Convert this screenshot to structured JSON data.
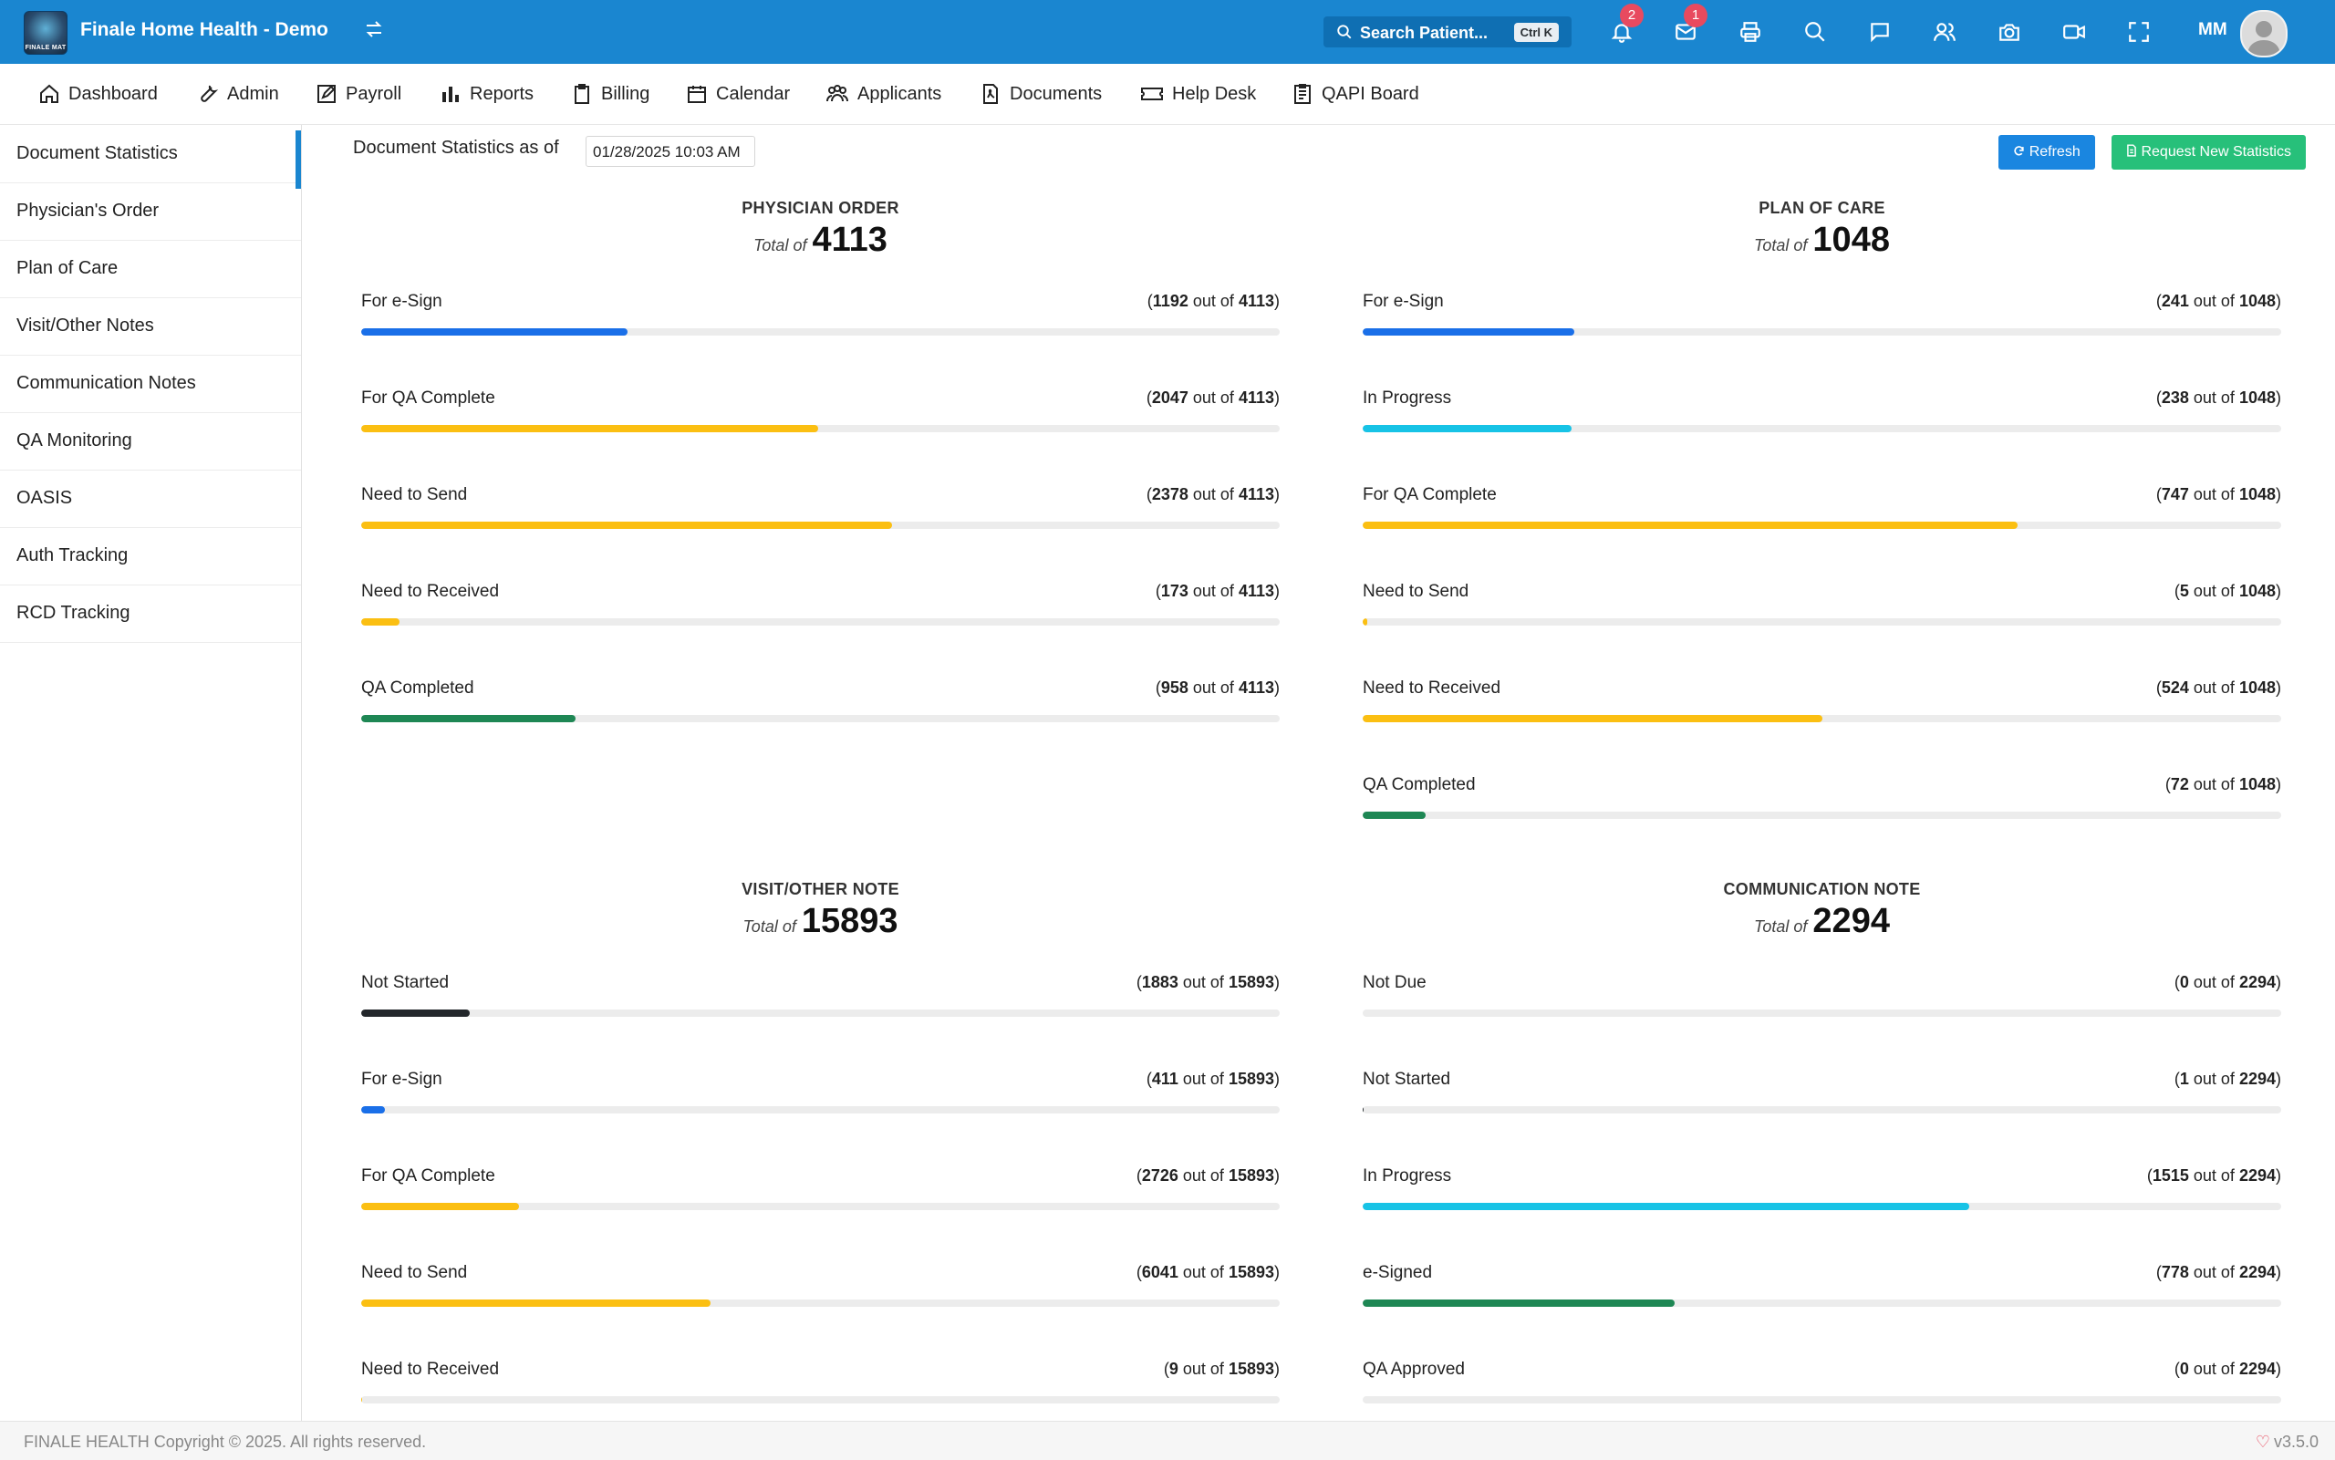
{
  "header": {
    "app_title": "Finale Home Health - Demo",
    "logo_text": "FINALE MAT",
    "search_label": "Search Patient...",
    "search_shortcut": "Ctrl K",
    "notifications_count": "2",
    "messages_count": "1",
    "user_initials": "MM",
    "icons": [
      "swap-icon",
      "bell-icon",
      "mail-icon",
      "print-icon",
      "search-icon",
      "chat-icon",
      "users-icon",
      "camera-icon",
      "video-icon",
      "fullscreen-icon"
    ]
  },
  "nav": {
    "items": [
      {
        "label": "Dashboard",
        "icon": "home-icon"
      },
      {
        "label": "Admin",
        "icon": "wrench-icon"
      },
      {
        "label": "Payroll",
        "icon": "edit-icon"
      },
      {
        "label": "Reports",
        "icon": "bar-chart-icon"
      },
      {
        "label": "Billing",
        "icon": "clipboard-icon"
      },
      {
        "label": "Calendar",
        "icon": "calendar-icon"
      },
      {
        "label": "Applicants",
        "icon": "people-icon"
      },
      {
        "label": "Documents",
        "icon": "pdf-icon"
      },
      {
        "label": "Help Desk",
        "icon": "ticket-icon"
      },
      {
        "label": "QAPI Board",
        "icon": "checklist-icon"
      }
    ]
  },
  "sidebar": {
    "items": [
      {
        "label": "Document Statistics",
        "active": true
      },
      {
        "label": "Physician's Order"
      },
      {
        "label": "Plan of Care"
      },
      {
        "label": "Visit/Other Notes"
      },
      {
        "label": "Communication Notes"
      },
      {
        "label": "QA Monitoring"
      },
      {
        "label": "OASIS"
      },
      {
        "label": "Auth Tracking"
      },
      {
        "label": "RCD Tracking"
      }
    ]
  },
  "toolbar": {
    "as_of_label": "Document Statistics as of",
    "as_of_value": "01/28/2025 10:03 AM",
    "refresh_label": "Refresh",
    "request_label": "Request New Statistics"
  },
  "colors": {
    "blue": "#1a6fe8",
    "yellow": "#fbbf12",
    "green": "#1e8754",
    "cyan": "#17c3e6",
    "dark": "#23272b",
    "header_blue": "#1a86d0"
  },
  "stats": {
    "total_label": "Total of",
    "out_of_label": "out of",
    "physician_order": {
      "title": "PHYSICIAN ORDER",
      "total": 4113,
      "rows": [
        {
          "label": "For e-Sign",
          "count": 1192,
          "color": "#1a6fe8"
        },
        {
          "label": "For QA Complete",
          "count": 2047,
          "color": "#fbbf12"
        },
        {
          "label": "Need to Send",
          "count": 2378,
          "color": "#fbbf12"
        },
        {
          "label": "Need to Received",
          "count": 173,
          "color": "#fbbf12"
        },
        {
          "label": "QA Completed",
          "count": 958,
          "color": "#1e8754"
        }
      ]
    },
    "plan_of_care": {
      "title": "PLAN OF CARE",
      "total": 1048,
      "rows": [
        {
          "label": "For e-Sign",
          "count": 241,
          "color": "#1a6fe8"
        },
        {
          "label": "In Progress",
          "count": 238,
          "color": "#17c3e6"
        },
        {
          "label": "For QA Complete",
          "count": 747,
          "color": "#fbbf12"
        },
        {
          "label": "Need to Send",
          "count": 5,
          "color": "#fbbf12"
        },
        {
          "label": "Need to Received",
          "count": 524,
          "color": "#fbbf12"
        },
        {
          "label": "QA Completed",
          "count": 72,
          "color": "#1e8754"
        }
      ]
    },
    "visit_other_note": {
      "title": "VISIT/OTHER NOTE",
      "total": 15893,
      "rows": [
        {
          "label": "Not Started",
          "count": 1883,
          "color": "#23272b"
        },
        {
          "label": "For e-Sign",
          "count": 411,
          "color": "#1a6fe8"
        },
        {
          "label": "For QA Complete",
          "count": 2726,
          "color": "#fbbf12"
        },
        {
          "label": "Need to Send",
          "count": 6041,
          "color": "#fbbf12"
        },
        {
          "label": "Need to Received",
          "count": 9,
          "color": "#fbbf12"
        }
      ]
    },
    "communication_note": {
      "title": "COMMUNICATION NOTE",
      "total": 2294,
      "rows": [
        {
          "label": "Not Due",
          "count": 0,
          "color": "#23272b"
        },
        {
          "label": "Not Started",
          "count": 1,
          "color": "#23272b"
        },
        {
          "label": "In Progress",
          "count": 1515,
          "color": "#17c3e6"
        },
        {
          "label": "e-Signed",
          "count": 778,
          "color": "#1e8754"
        },
        {
          "label": "QA Approved",
          "count": 0,
          "color": "#1e8754"
        }
      ]
    }
  },
  "footer": {
    "copyright": "FINALE HEALTH Copyright © 2025. All rights reserved.",
    "version": "v3.5.0"
  }
}
